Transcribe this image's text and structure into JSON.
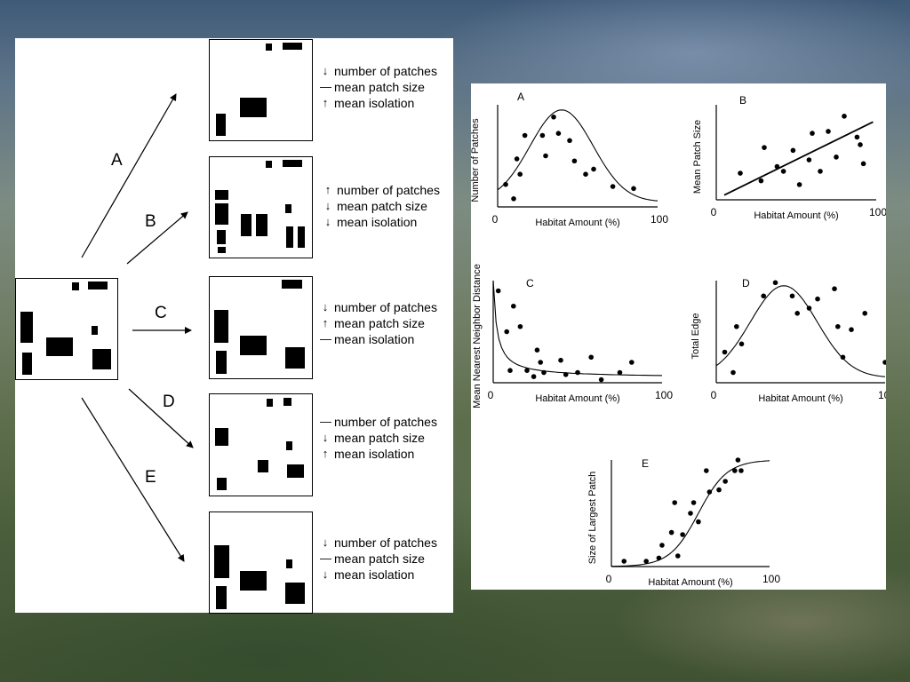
{
  "scenarios": [
    {
      "letter": "A",
      "lines": [
        {
          "sym": "↓",
          "text": "number of patches"
        },
        {
          "sym": "—",
          "text": "mean patch size"
        },
        {
          "sym": "↑",
          "text": "mean isolation"
        }
      ]
    },
    {
      "letter": "B",
      "lines": [
        {
          "sym": "↑",
          "text": "number of patches"
        },
        {
          "sym": "↓",
          "text": "mean patch size"
        },
        {
          "sym": "↓",
          "text": "mean isolation"
        }
      ]
    },
    {
      "letter": "C",
      "lines": [
        {
          "sym": "↓",
          "text": "number of patches"
        },
        {
          "sym": "↑",
          "text": "mean patch size"
        },
        {
          "sym": "—",
          "text": "mean isolation"
        }
      ]
    },
    {
      "letter": "D",
      "lines": [
        {
          "sym": "—",
          "text": "number of patches"
        },
        {
          "sym": "↓",
          "text": "mean patch size"
        },
        {
          "sym": "↑",
          "text": "mean isolation"
        }
      ]
    },
    {
      "letter": "E",
      "lines": [
        {
          "sym": "↓",
          "text": "number of patches"
        },
        {
          "sym": "—",
          "text": "mean patch size"
        },
        {
          "sym": "↓",
          "text": "mean isolation"
        }
      ]
    }
  ],
  "chart_data": [
    {
      "type": "scatter",
      "title": "A",
      "xlabel": "Habitat Amount (%)",
      "ylabel": "Number of Patches",
      "x_ticks": [
        "0",
        "100"
      ],
      "xlim": [
        0,
        100
      ],
      "trend": "hump",
      "points": [
        [
          5,
          22
        ],
        [
          10,
          8
        ],
        [
          12,
          47
        ],
        [
          14,
          32
        ],
        [
          17,
          70
        ],
        [
          28,
          70
        ],
        [
          30,
          50
        ],
        [
          35,
          88
        ],
        [
          38,
          72
        ],
        [
          45,
          65
        ],
        [
          48,
          45
        ],
        [
          55,
          32
        ],
        [
          60,
          37
        ],
        [
          72,
          20
        ],
        [
          85,
          18
        ]
      ]
    },
    {
      "type": "scatter",
      "title": "B",
      "xlabel": "Habitat Amount (%)",
      "ylabel": "Mean Patch Size",
      "x_ticks": [
        "0",
        "100"
      ],
      "xlim": [
        0,
        100
      ],
      "trend": "linear",
      "points": [
        [
          15,
          28
        ],
        [
          28,
          20
        ],
        [
          30,
          55
        ],
        [
          38,
          35
        ],
        [
          42,
          30
        ],
        [
          48,
          52
        ],
        [
          52,
          16
        ],
        [
          58,
          42
        ],
        [
          60,
          70
        ],
        [
          65,
          30
        ],
        [
          70,
          72
        ],
        [
          75,
          45
        ],
        [
          80,
          88
        ],
        [
          88,
          66
        ],
        [
          90,
          58
        ],
        [
          92,
          38
        ]
      ]
    },
    {
      "type": "scatter",
      "title": "C",
      "xlabel": "Habitat Amount (%)",
      "ylabel": "Mean Nearest Neighbor Distance",
      "x_ticks": [
        "0",
        "100"
      ],
      "xlim": [
        0,
        100
      ],
      "trend": "decay",
      "points": [
        [
          3,
          90
        ],
        [
          8,
          50
        ],
        [
          10,
          12
        ],
        [
          12,
          75
        ],
        [
          16,
          55
        ],
        [
          20,
          12
        ],
        [
          24,
          6
        ],
        [
          26,
          32
        ],
        [
          28,
          20
        ],
        [
          30,
          10
        ],
        [
          40,
          22
        ],
        [
          43,
          8
        ],
        [
          50,
          10
        ],
        [
          58,
          25
        ],
        [
          64,
          3
        ],
        [
          75,
          10
        ],
        [
          82,
          20
        ]
      ]
    },
    {
      "type": "scatter",
      "title": "D",
      "xlabel": "Habitat Amount (%)",
      "ylabel": "Total Edge",
      "x_ticks": [
        "0",
        "100"
      ],
      "xlim": [
        0,
        100
      ],
      "trend": "hump",
      "points": [
        [
          5,
          30
        ],
        [
          10,
          10
        ],
        [
          12,
          55
        ],
        [
          15,
          38
        ],
        [
          28,
          85
        ],
        [
          35,
          98
        ],
        [
          45,
          85
        ],
        [
          48,
          68
        ],
        [
          55,
          73
        ],
        [
          60,
          82
        ],
        [
          70,
          92
        ],
        [
          72,
          55
        ],
        [
          75,
          25
        ],
        [
          80,
          52
        ],
        [
          88,
          68
        ],
        [
          100,
          20
        ]
      ]
    },
    {
      "type": "scatter",
      "title": "E",
      "xlabel": "Habitat Amount (%)",
      "ylabel": "Size of Largest Patch",
      "x_ticks": [
        "0",
        "100"
      ],
      "xlim": [
        0,
        100
      ],
      "trend": "sigmoid",
      "points": [
        [
          8,
          5
        ],
        [
          22,
          5
        ],
        [
          30,
          8
        ],
        [
          32,
          20
        ],
        [
          38,
          32
        ],
        [
          40,
          60
        ],
        [
          42,
          10
        ],
        [
          45,
          30
        ],
        [
          50,
          50
        ],
        [
          52,
          60
        ],
        [
          55,
          42
        ],
        [
          60,
          90
        ],
        [
          62,
          70
        ],
        [
          68,
          72
        ],
        [
          72,
          80
        ],
        [
          78,
          90
        ],
        [
          80,
          100
        ],
        [
          82,
          90
        ]
      ]
    }
  ]
}
